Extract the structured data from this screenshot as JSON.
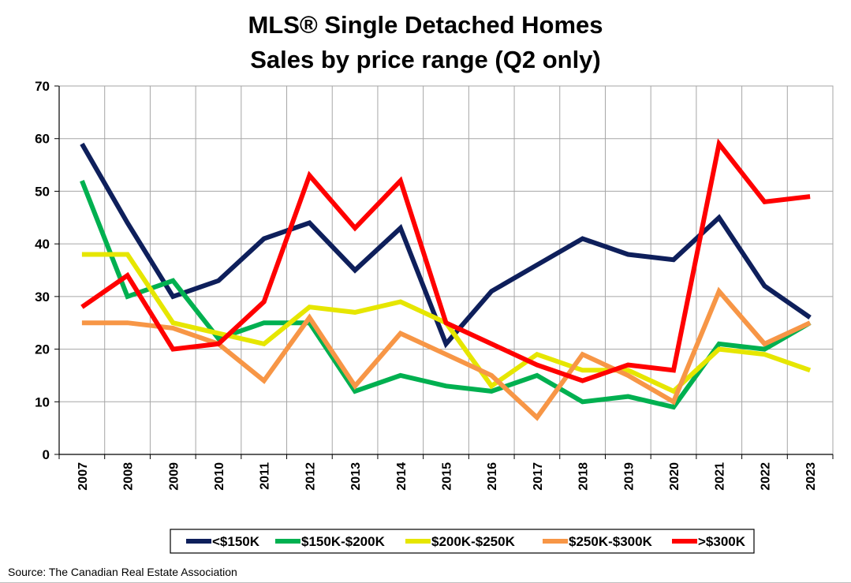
{
  "chart_data": {
    "type": "line",
    "title": "MLS® Single Detached Homes",
    "subtitle": "Sales by price range (Q2 only)",
    "xlabel": "",
    "ylabel": "",
    "x": [
      "2007",
      "2008",
      "2009",
      "2010",
      "2011",
      "2012",
      "2013",
      "2014",
      "2015",
      "2016",
      "2017",
      "2018",
      "2019",
      "2020",
      "2021",
      "2022",
      "2023"
    ],
    "ylim": [
      0,
      70
    ],
    "yticks": [
      "0",
      "10",
      "20",
      "30",
      "40",
      "50",
      "60",
      "70"
    ],
    "grid": true,
    "legend_position": "bottom",
    "series": [
      {
        "name": "<$150K",
        "color": "#0e1f5b",
        "values": [
          59,
          44,
          30,
          33,
          41,
          44,
          35,
          43,
          21,
          31,
          36,
          41,
          38,
          37,
          45,
          32,
          26
        ]
      },
      {
        "name": "$150K-$200K",
        "color": "#00b050",
        "values": [
          52,
          30,
          33,
          22,
          25,
          25,
          12,
          15,
          13,
          12,
          15,
          10,
          11,
          9,
          21,
          20,
          25
        ]
      },
      {
        "name": "$200K-$250K",
        "color": "#e6e600",
        "values": [
          38,
          38,
          25,
          23,
          21,
          28,
          27,
          29,
          25,
          13,
          19,
          16,
          16,
          12,
          20,
          19,
          16
        ]
      },
      {
        "name": "$250K-$300K",
        "color": "#f79646",
        "values": [
          25,
          25,
          24,
          21,
          14,
          26,
          13,
          23,
          19,
          15,
          7,
          19,
          15,
          10,
          31,
          21,
          25
        ]
      },
      {
        "name": ">$300K",
        "color": "#ff0000",
        "values": [
          28,
          34,
          20,
          21,
          29,
          53,
          43,
          52,
          25,
          21,
          17,
          14,
          17,
          16,
          59,
          48,
          49
        ]
      }
    ]
  },
  "source": "Source: The Canadian Real Estate Association"
}
